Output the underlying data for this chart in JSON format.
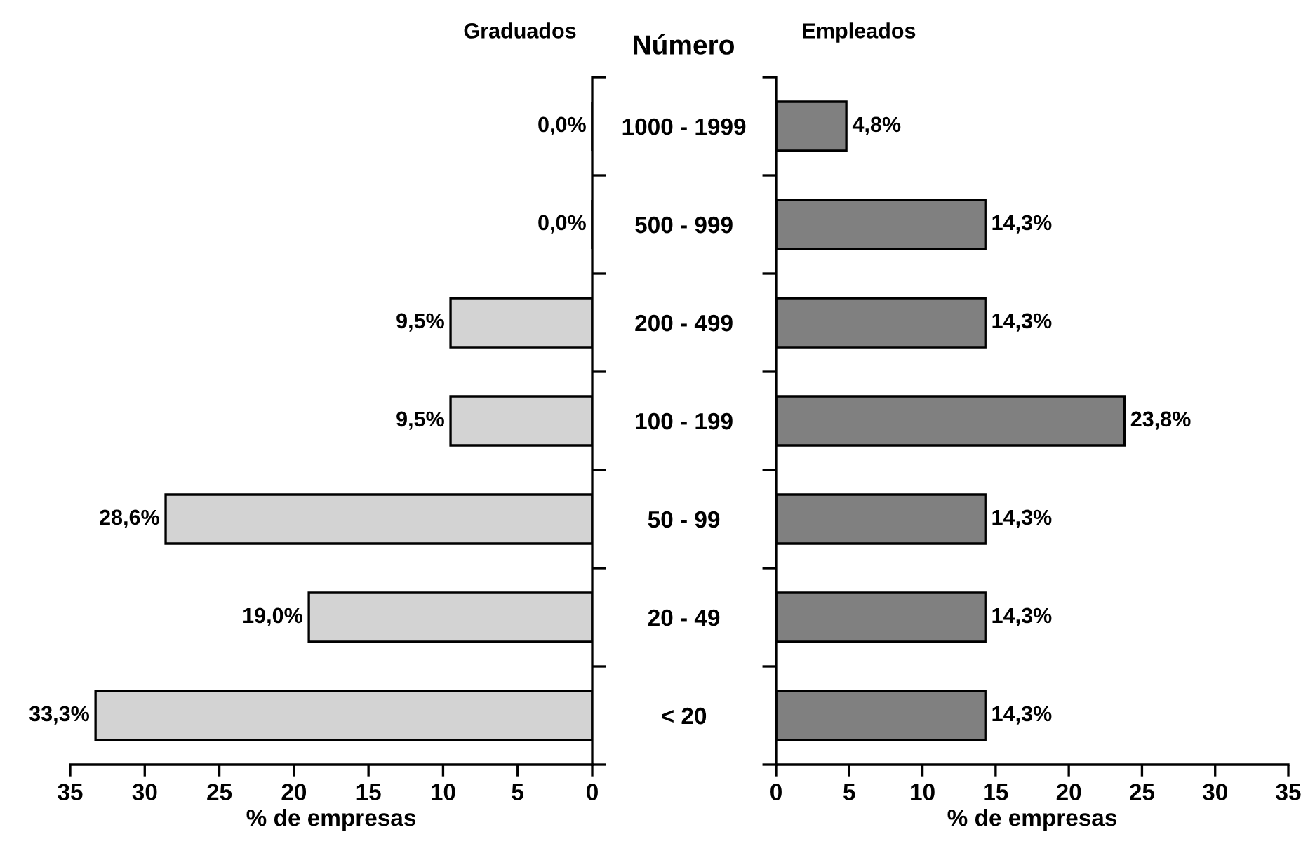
{
  "chart_data": [
    {
      "type": "bar",
      "orientation": "horizontal",
      "title": "Graduados",
      "ylabel": "Número",
      "xlabel": "% de empresas",
      "categories": [
        "1000 - 1999",
        "500 - 999",
        "200 - 499",
        "100 - 199",
        "50 - 99",
        "20 - 49",
        "< 20"
      ],
      "values": [
        0.0,
        0.0,
        9.5,
        9.5,
        28.6,
        19.0,
        33.3
      ],
      "color": "#d3d3d3",
      "value_labels": [
        "0,0%",
        "0,0%",
        "9,5%",
        "9,5%",
        "28,6%",
        "19,0%",
        "33,3%"
      ],
      "xlim": [
        35,
        0
      ],
      "xticks": [
        35,
        30,
        25,
        20,
        15,
        10,
        5,
        0
      ],
      "grid": false
    },
    {
      "type": "bar",
      "orientation": "horizontal",
      "title": "Empleados",
      "xlabel": "% de empresas",
      "categories": [
        null,
        null,
        null,
        null,
        null,
        null,
        null
      ],
      "values": [
        4.8,
        14.3,
        14.3,
        23.8,
        14.3,
        14.3,
        14.3
      ],
      "color": "#808080",
      "value_labels": [
        "4,8%",
        "14,3%",
        "14,3%",
        "23,8%",
        "14,3%",
        "14,3%",
        "14,3%"
      ],
      "xlim": [
        0,
        35
      ],
      "xticks": [
        0,
        5,
        10,
        15,
        20,
        25,
        30,
        35
      ],
      "tick_labels": "x",
      "grid": false
    }
  ]
}
